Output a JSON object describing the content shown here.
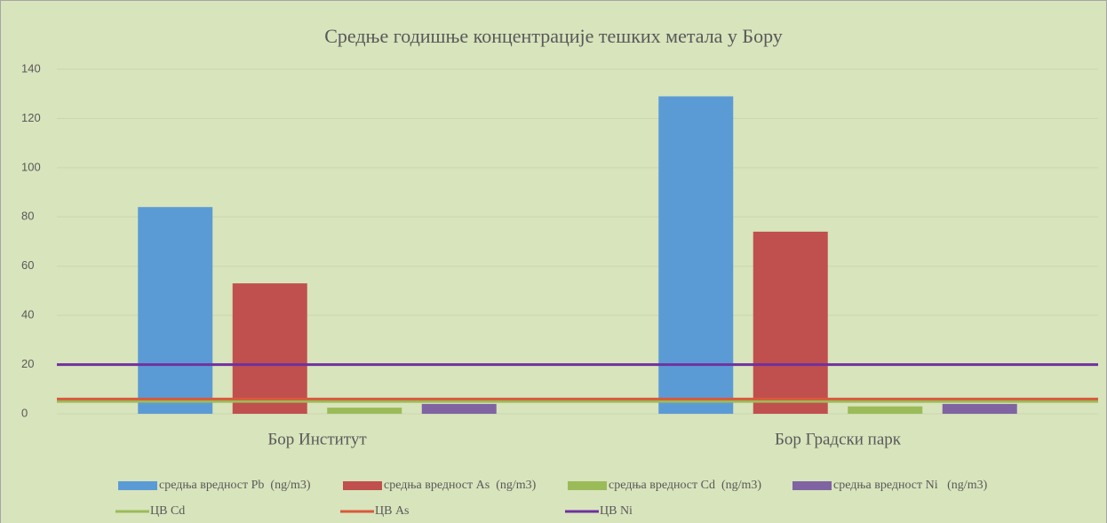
{
  "chart_data": {
    "type": "bar",
    "title": "Средње годишње концентрације тешких метала у Бору",
    "categories": [
      "Бор Институт",
      "Бор Градски парк"
    ],
    "series": [
      {
        "name": "средња вредност Pb  (ng/m3)",
        "type": "bar",
        "color": "#5b9bd5",
        "values": [
          84,
          129
        ]
      },
      {
        "name": "средња вредност As  (ng/m3)",
        "type": "bar",
        "color": "#c0504d",
        "values": [
          53,
          74
        ]
      },
      {
        "name": "средња вредност Cd  (ng/m3)",
        "type": "bar",
        "color": "#9bbb59",
        "values": [
          2.5,
          3
        ]
      },
      {
        "name": "средња вредност Ni   (ng/m3)",
        "type": "bar",
        "color": "#8064a2",
        "values": [
          4,
          4
        ]
      },
      {
        "name": "ЦВ Cd",
        "type": "line",
        "color": "#9bbb59",
        "values": [
          5,
          5
        ]
      },
      {
        "name": "ЦВ As",
        "type": "line",
        "color": "#d9593d",
        "values": [
          6,
          6
        ]
      },
      {
        "name": "ЦВ Ni",
        "type": "line",
        "color": "#7030a0",
        "values": [
          20,
          20
        ]
      }
    ],
    "ylim": [
      0,
      140
    ],
    "yticks": [
      0,
      20,
      40,
      60,
      80,
      100,
      120,
      140
    ],
    "grid": true
  }
}
